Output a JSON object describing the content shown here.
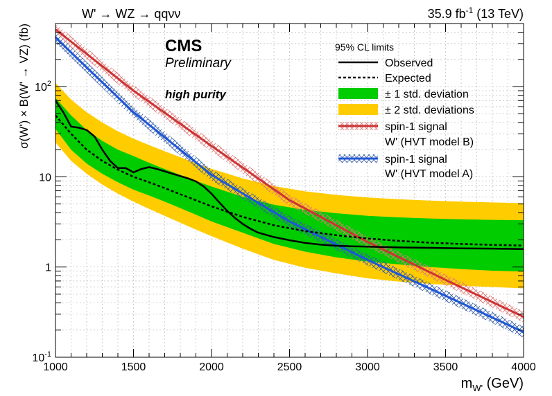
{
  "header": {
    "process": "W' → WZ → qqνν",
    "lumi_value": "35.9 fb",
    "lumi_exp": "-1",
    "energy": "(13 TeV)"
  },
  "labels": {
    "cms": "CMS",
    "preliminary": "Preliminary",
    "category": "high purity",
    "ylabel": "σ(W') × B(W' → VZ) (fb)",
    "xlabel_main": "m",
    "xlabel_sub": "W'",
    "xlabel_unit": " (GeV)"
  },
  "legend": {
    "title": "95% CL limits",
    "observed": "Observed",
    "expected": "Expected",
    "band1": "± 1 std. deviation",
    "band2": "± 2 std. deviations",
    "sigB_line1": "spin-1 signal",
    "sigB_line2": "W' (HVT model B)",
    "sigA_line1": "spin-1 signal",
    "sigA_line2": "W' (HVT model A)"
  },
  "colors": {
    "band1": "#00cc00",
    "band2": "#ffcc00",
    "sigB": "#cc3333",
    "sigA": "#1f57d6",
    "sigB_hatch": "#e07a7a",
    "sigA_hatch": "#3a5fa8"
  },
  "chart_data": {
    "type": "line",
    "xlabel": "m_W' (GeV)",
    "ylabel": "σ(W') × B(W' → VZ) (fb)",
    "xlim": [
      1000,
      4000
    ],
    "ylim": [
      0.1,
      500
    ],
    "yscale": "log",
    "x_ticks": [
      1000,
      1500,
      2000,
      2500,
      3000,
      3500,
      4000
    ],
    "y_tick_labels": [
      {
        "value": 0.1,
        "base": "10",
        "exp": "-1"
      },
      {
        "value": 1,
        "base": "1",
        "exp": ""
      },
      {
        "value": 10,
        "base": "10",
        "exp": ""
      },
      {
        "value": 100,
        "base": "10",
        "exp": "2"
      }
    ],
    "legend_position": "top-right",
    "series": [
      {
        "name": "Observed",
        "style": "solid",
        "x": [
          1000,
          1050,
          1100,
          1150,
          1200,
          1250,
          1300,
          1350,
          1400,
          1450,
          1500,
          1550,
          1600,
          1650,
          1700,
          1750,
          1800,
          1850,
          1900,
          1950,
          2000,
          2050,
          2100,
          2150,
          2200,
          2250,
          2300,
          2400,
          2500,
          2600,
          2700,
          2800,
          2900,
          3000,
          3200,
          3400,
          3600,
          3800,
          4000
        ],
        "y": [
          70,
          52,
          36,
          35,
          33,
          28,
          20,
          15,
          12.5,
          12.5,
          11.2,
          12.2,
          12.8,
          12.2,
          11.5,
          10.8,
          10.2,
          9.6,
          8.9,
          7.8,
          6.5,
          5.2,
          4.2,
          3.5,
          3.0,
          2.65,
          2.4,
          2.15,
          1.98,
          1.85,
          1.77,
          1.72,
          1.7,
          1.68,
          1.65,
          1.63,
          1.61,
          1.6,
          1.58
        ]
      },
      {
        "name": "Expected",
        "style": "dashed",
        "x": [
          1000,
          1100,
          1200,
          1300,
          1400,
          1500,
          1600,
          1700,
          1800,
          1900,
          2000,
          2200,
          2400,
          2600,
          2800,
          3000,
          3200,
          3400,
          3600,
          3800,
          4000
        ],
        "y": [
          48,
          30,
          20,
          15,
          12,
          10,
          8.7,
          7.5,
          6.4,
          5.5,
          4.7,
          3.6,
          2.9,
          2.5,
          2.25,
          2.07,
          1.95,
          1.86,
          1.8,
          1.76,
          1.73
        ]
      },
      {
        "name": "± 1 std. deviation",
        "style": "band",
        "x": [
          1000,
          1100,
          1200,
          1300,
          1400,
          1500,
          1600,
          1700,
          1800,
          1900,
          2000,
          2200,
          2400,
          2600,
          2800,
          3000,
          3200,
          3400,
          3600,
          3800,
          4000
        ],
        "y_low": [
          34,
          20,
          14,
          10.8,
          8.7,
          7.2,
          6.2,
          5.3,
          4.5,
          3.8,
          3.2,
          2.4,
          1.8,
          1.48,
          1.28,
          1.15,
          1.07,
          1.0,
          0.95,
          0.91,
          0.89
        ],
        "y_high": [
          75,
          48,
          33,
          25,
          20,
          17,
          14.3,
          12.2,
          10.5,
          9.0,
          7.8,
          6.0,
          4.9,
          4.3,
          3.95,
          3.7,
          3.55,
          3.45,
          3.38,
          3.33,
          3.3
        ]
      },
      {
        "name": "± 2 std. deviations",
        "style": "band",
        "x": [
          1000,
          1100,
          1200,
          1300,
          1400,
          1500,
          1600,
          1700,
          1800,
          1900,
          2000,
          2200,
          2400,
          2600,
          2800,
          3000,
          3200,
          3400,
          3600,
          3800,
          4000
        ],
        "y_low": [
          24,
          15,
          10.8,
          8.2,
          6.5,
          5.3,
          4.4,
          3.7,
          3.1,
          2.6,
          2.2,
          1.6,
          1.2,
          0.98,
          0.85,
          0.75,
          0.69,
          0.65,
          0.62,
          0.6,
          0.58
        ],
        "y_high": [
          110,
          72,
          52,
          40,
          32,
          26.5,
          22.5,
          19.2,
          16.5,
          14.2,
          12.3,
          9.6,
          7.9,
          6.9,
          6.3,
          5.9,
          5.65,
          5.45,
          5.3,
          5.2,
          5.1
        ]
      },
      {
        "name": "spin-1 signal W' (HVT model B)",
        "style": "solid",
        "x": [
          1000,
          1500,
          2000,
          2500,
          3000,
          3500,
          4000
        ],
        "y": [
          430,
          90,
          22,
          5.5,
          1.9,
          0.72,
          0.28
        ]
      },
      {
        "name": "spin-1 signal W' (HVT model A)",
        "style": "solid",
        "x": [
          1000,
          1500,
          2000,
          2500,
          3000,
          3500,
          4000
        ],
        "y": [
          350,
          52,
          10.5,
          3.2,
          1.2,
          0.48,
          0.19
        ]
      }
    ]
  }
}
